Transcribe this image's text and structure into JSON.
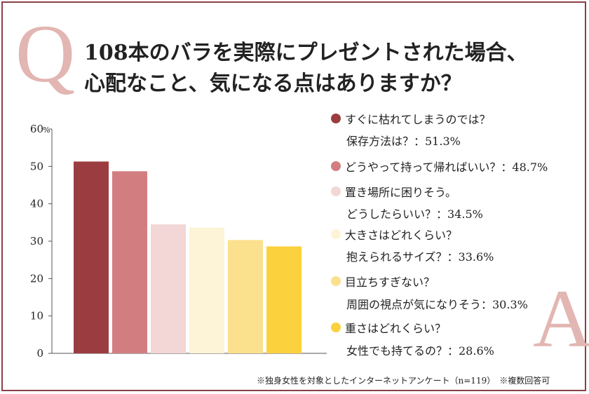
{
  "letters": {
    "q": "Q",
    "a": "A"
  },
  "title": {
    "line1": "108本のバラを実際にプレゼントされた場合、",
    "line2": "心配なこと、気になる点はありますか？"
  },
  "footnote": "※独身女性を対象としたインターネットアンケート（n=119）　※複数回答可",
  "chart_data": {
    "type": "bar",
    "title": "108本のバラを実際にプレゼントされた場合、心配なこと、気になる点はありますか？",
    "ylim": [
      0,
      60
    ],
    "y_unit": "%",
    "yticks": [
      "0",
      "10",
      "20",
      "30",
      "40",
      "50",
      "60"
    ],
    "grid": false,
    "legend_position": "right",
    "categories": [
      "すぐに枯れてしまうのでは？保存方法は？",
      "どうやって持って帰ればいい？",
      "置き場所に困りそう。どうしたらいい？",
      "大きさはどれくらい？抱えられるサイズ？",
      "目立ちすぎない？周囲の視点が気になりそう",
      "重さはどれくらい？女性でも持てるの？"
    ],
    "values": [
      51.3,
      48.7,
      34.5,
      33.6,
      30.3,
      28.6
    ],
    "colors": [
      "#9b3d40",
      "#d27e80",
      "#f3d6d6",
      "#fdf3d6",
      "#fbe08d",
      "#fcd13e"
    ],
    "legend": [
      {
        "line1": "すぐに枯れてしまうのでは？",
        "line2": "保存方法は？：51.3%"
      },
      {
        "line1": "どうやって持って帰ればいい？：48.7%",
        "line2": ""
      },
      {
        "line1": "置き場所に困りそう。",
        "line2": "どうしたらいい？：34.5%"
      },
      {
        "line1": "大きさはどれくらい？",
        "line2": "抱えられるサイズ？：33.6%"
      },
      {
        "line1": "目立ちすぎない？",
        "line2": "周囲の視点が気になりそう：30.3%"
      },
      {
        "line1": "重さはどれくらい？",
        "line2": "女性でも持てるの？：28.6%"
      }
    ]
  }
}
